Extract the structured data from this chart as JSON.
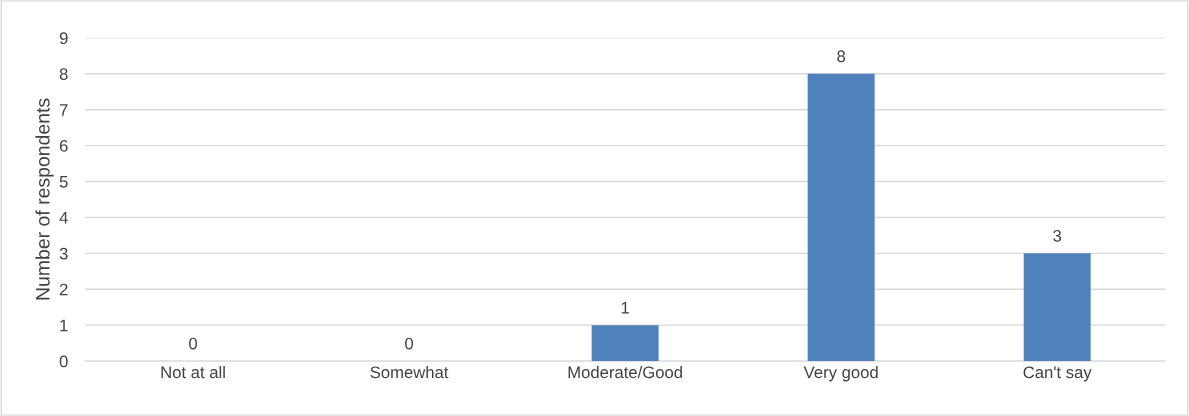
{
  "chart_data": {
    "type": "bar",
    "ylabel": "Number of respondents",
    "categories": [
      "Not at all",
      "Somewhat",
      "Moderate/Good",
      "Very good",
      "Can't say"
    ],
    "values": [
      0,
      0,
      1,
      8,
      3
    ],
    "color": "#4f81bd",
    "ylim": [
      0,
      9
    ],
    "yticks": [
      0,
      1,
      2,
      3,
      4,
      5,
      6,
      7,
      8,
      9
    ],
    "grid": "y",
    "data_labels": true
  }
}
